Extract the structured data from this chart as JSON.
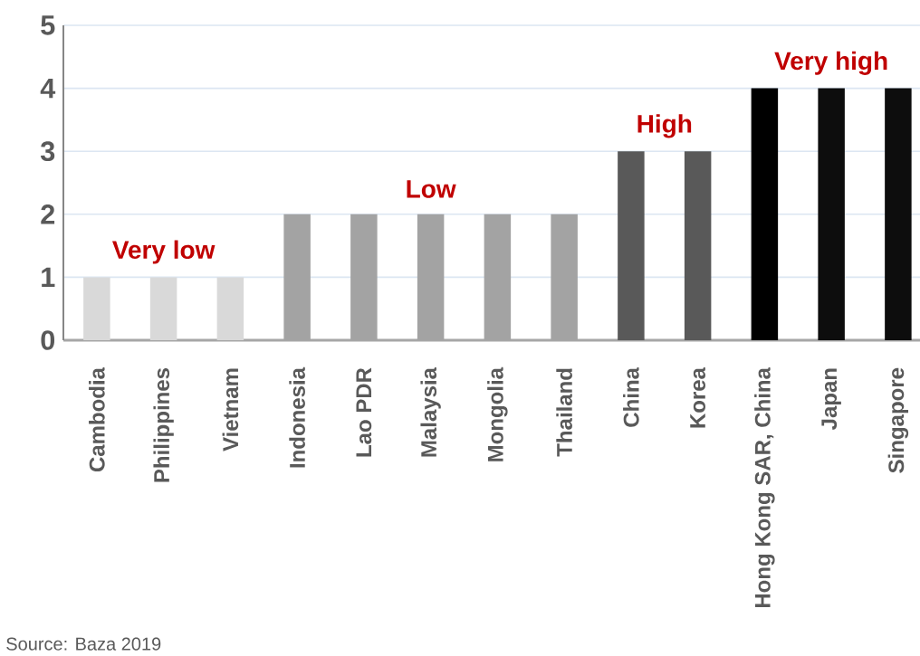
{
  "chart_data": {
    "type": "bar",
    "categories": [
      "Cambodia",
      "Philippines",
      "Vietnam",
      "Indonesia",
      "Lao PDR",
      "Malaysia",
      "Mongolia",
      "Thailand",
      "China",
      "Korea",
      "Hong Kong SAR, China",
      "Japan",
      "Singapore"
    ],
    "values": [
      1,
      1,
      1,
      2,
      2,
      2,
      2,
      2,
      3,
      3,
      4,
      4,
      4
    ],
    "colors": [
      "#d9d9d9",
      "#d9d9d9",
      "#d9d9d9",
      "#a3a3a3",
      "#a3a3a3",
      "#a3a3a3",
      "#a3a3a3",
      "#a3a3a3",
      "#595959",
      "#595959",
      "#000000",
      "#0d0d0d",
      "#0d0d0d"
    ],
    "ylim": [
      0,
      5
    ],
    "yticks": [
      0,
      1,
      2,
      3,
      4,
      5
    ],
    "grid": "y",
    "annotations": [
      "Very low",
      "Low",
      "High",
      "Very high",
      "Source: Baza 2019"
    ]
  }
}
